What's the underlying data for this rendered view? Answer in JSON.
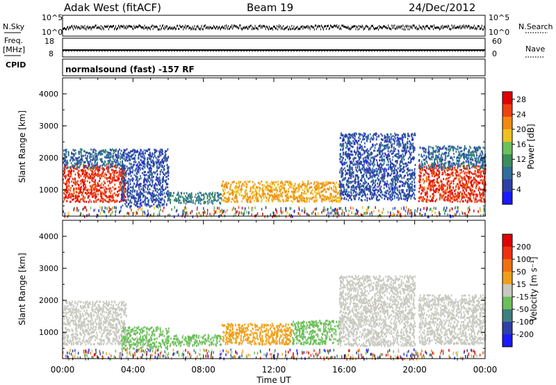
{
  "header": {
    "station": "Adak West (fitACF)",
    "beam": "Beam 19",
    "date": "24/Dec/2012"
  },
  "aux_panels": {
    "nsky_label": "N.Sky",
    "nsearch_label": "N.Search",
    "nsky_ticks": [
      "10^5",
      "10^0"
    ],
    "nsearch_ticks": [
      "10^5",
      "10^0"
    ],
    "freq_label_top": "Freq.",
    "freq_label_unit": "[MHz]",
    "freq_ticks": [
      "18",
      "8"
    ],
    "nave_label": "Nave",
    "nave_ticks": [
      "60",
      "0"
    ],
    "cpid_label": "CPID",
    "cpid_text": "normalsound (fast) -157 RF"
  },
  "colors": {
    "scale_power": [
      "#1a1aff",
      "#2e3fa8",
      "#2f6f9a",
      "#3a8f5a",
      "#6cc05a",
      "#f0c020",
      "#f08a10",
      "#f04010",
      "#e00000"
    ],
    "scale_velocity": [
      "#1a1aff",
      "#2e3fa8",
      "#3f7f7f",
      "#6cc05a",
      "#c8c8c0",
      "#f0a018",
      "#f07010",
      "#f03010",
      "#e00000"
    ]
  },
  "chart_data": [
    {
      "type": "heatmap",
      "name": "power",
      "ylabel": "Slant Range [km]",
      "xlabel": "",
      "y_ticks": [
        "1000",
        "2000",
        "3000",
        "4000"
      ],
      "ylim": [
        180,
        4500
      ],
      "xlim": [
        0,
        24
      ],
      "x_ticks": [
        "00:00",
        "04:00",
        "08:00",
        "12:00",
        "16:00",
        "20:00",
        "00:00"
      ],
      "colorbar_label": "Power [dB]",
      "colorbar_ticks": [
        "4",
        "8",
        "12",
        "16",
        "20",
        "24",
        "28"
      ],
      "colorbar_range": [
        0,
        30
      ],
      "regions": [
        {
          "t0": 0.0,
          "t1": 3.6,
          "r0": 650,
          "r1": 1800,
          "value": 26
        },
        {
          "t0": 0.0,
          "t1": 3.3,
          "r0": 1700,
          "r1": 2300,
          "value": 8
        },
        {
          "t0": 3.3,
          "t1": 6.0,
          "r0": 500,
          "r1": 2300,
          "value": 6
        },
        {
          "t0": 6.0,
          "t1": 9.0,
          "r0": 600,
          "r1": 950,
          "value": 10
        },
        {
          "t0": 9.0,
          "t1": 15.8,
          "r0": 650,
          "r1": 1300,
          "value": 20
        },
        {
          "t0": 15.7,
          "t1": 20.0,
          "r0": 700,
          "r1": 2800,
          "value": 6
        },
        {
          "t0": 20.2,
          "t1": 24.0,
          "r0": 650,
          "r1": 1800,
          "value": 26
        },
        {
          "t0": 20.2,
          "t1": 24.0,
          "r0": 1700,
          "r1": 2400,
          "value": 8
        }
      ]
    },
    {
      "type": "heatmap",
      "name": "velocity",
      "ylabel": "Slant Range [km]",
      "xlabel": "Time UT",
      "y_ticks": [
        "1000",
        "2000",
        "3000",
        "4000"
      ],
      "ylim": [
        180,
        4500
      ],
      "xlim": [
        0,
        24
      ],
      "x_ticks": [
        "00:00",
        "04:00",
        "08:00",
        "12:00",
        "16:00",
        "20:00",
        "00:00"
      ],
      "colorbar_label": "Velocity [m s⁻¹]",
      "colorbar_ticks": [
        "200",
        "100",
        "50",
        "15",
        "-15",
        "-50",
        "-100",
        "-200"
      ],
      "colorbar_range": [
        -200,
        200
      ],
      "regions": [
        {
          "t0": 0.0,
          "t1": 3.6,
          "r0": 650,
          "r1": 2000,
          "value": 0
        },
        {
          "t0": 3.3,
          "t1": 6.0,
          "r0": 500,
          "r1": 1200,
          "value": 30
        },
        {
          "t0": 6.0,
          "t1": 9.0,
          "r0": 600,
          "r1": 950,
          "value": 30
        },
        {
          "t0": 9.0,
          "t1": 13.0,
          "r0": 650,
          "r1": 1300,
          "value": -40
        },
        {
          "t0": 13.0,
          "t1": 15.8,
          "r0": 650,
          "r1": 1400,
          "value": 30
        },
        {
          "t0": 15.7,
          "t1": 20.0,
          "r0": 600,
          "r1": 2800,
          "value": 0
        },
        {
          "t0": 20.2,
          "t1": 24.0,
          "r0": 650,
          "r1": 2200,
          "value": 0
        }
      ]
    }
  ]
}
